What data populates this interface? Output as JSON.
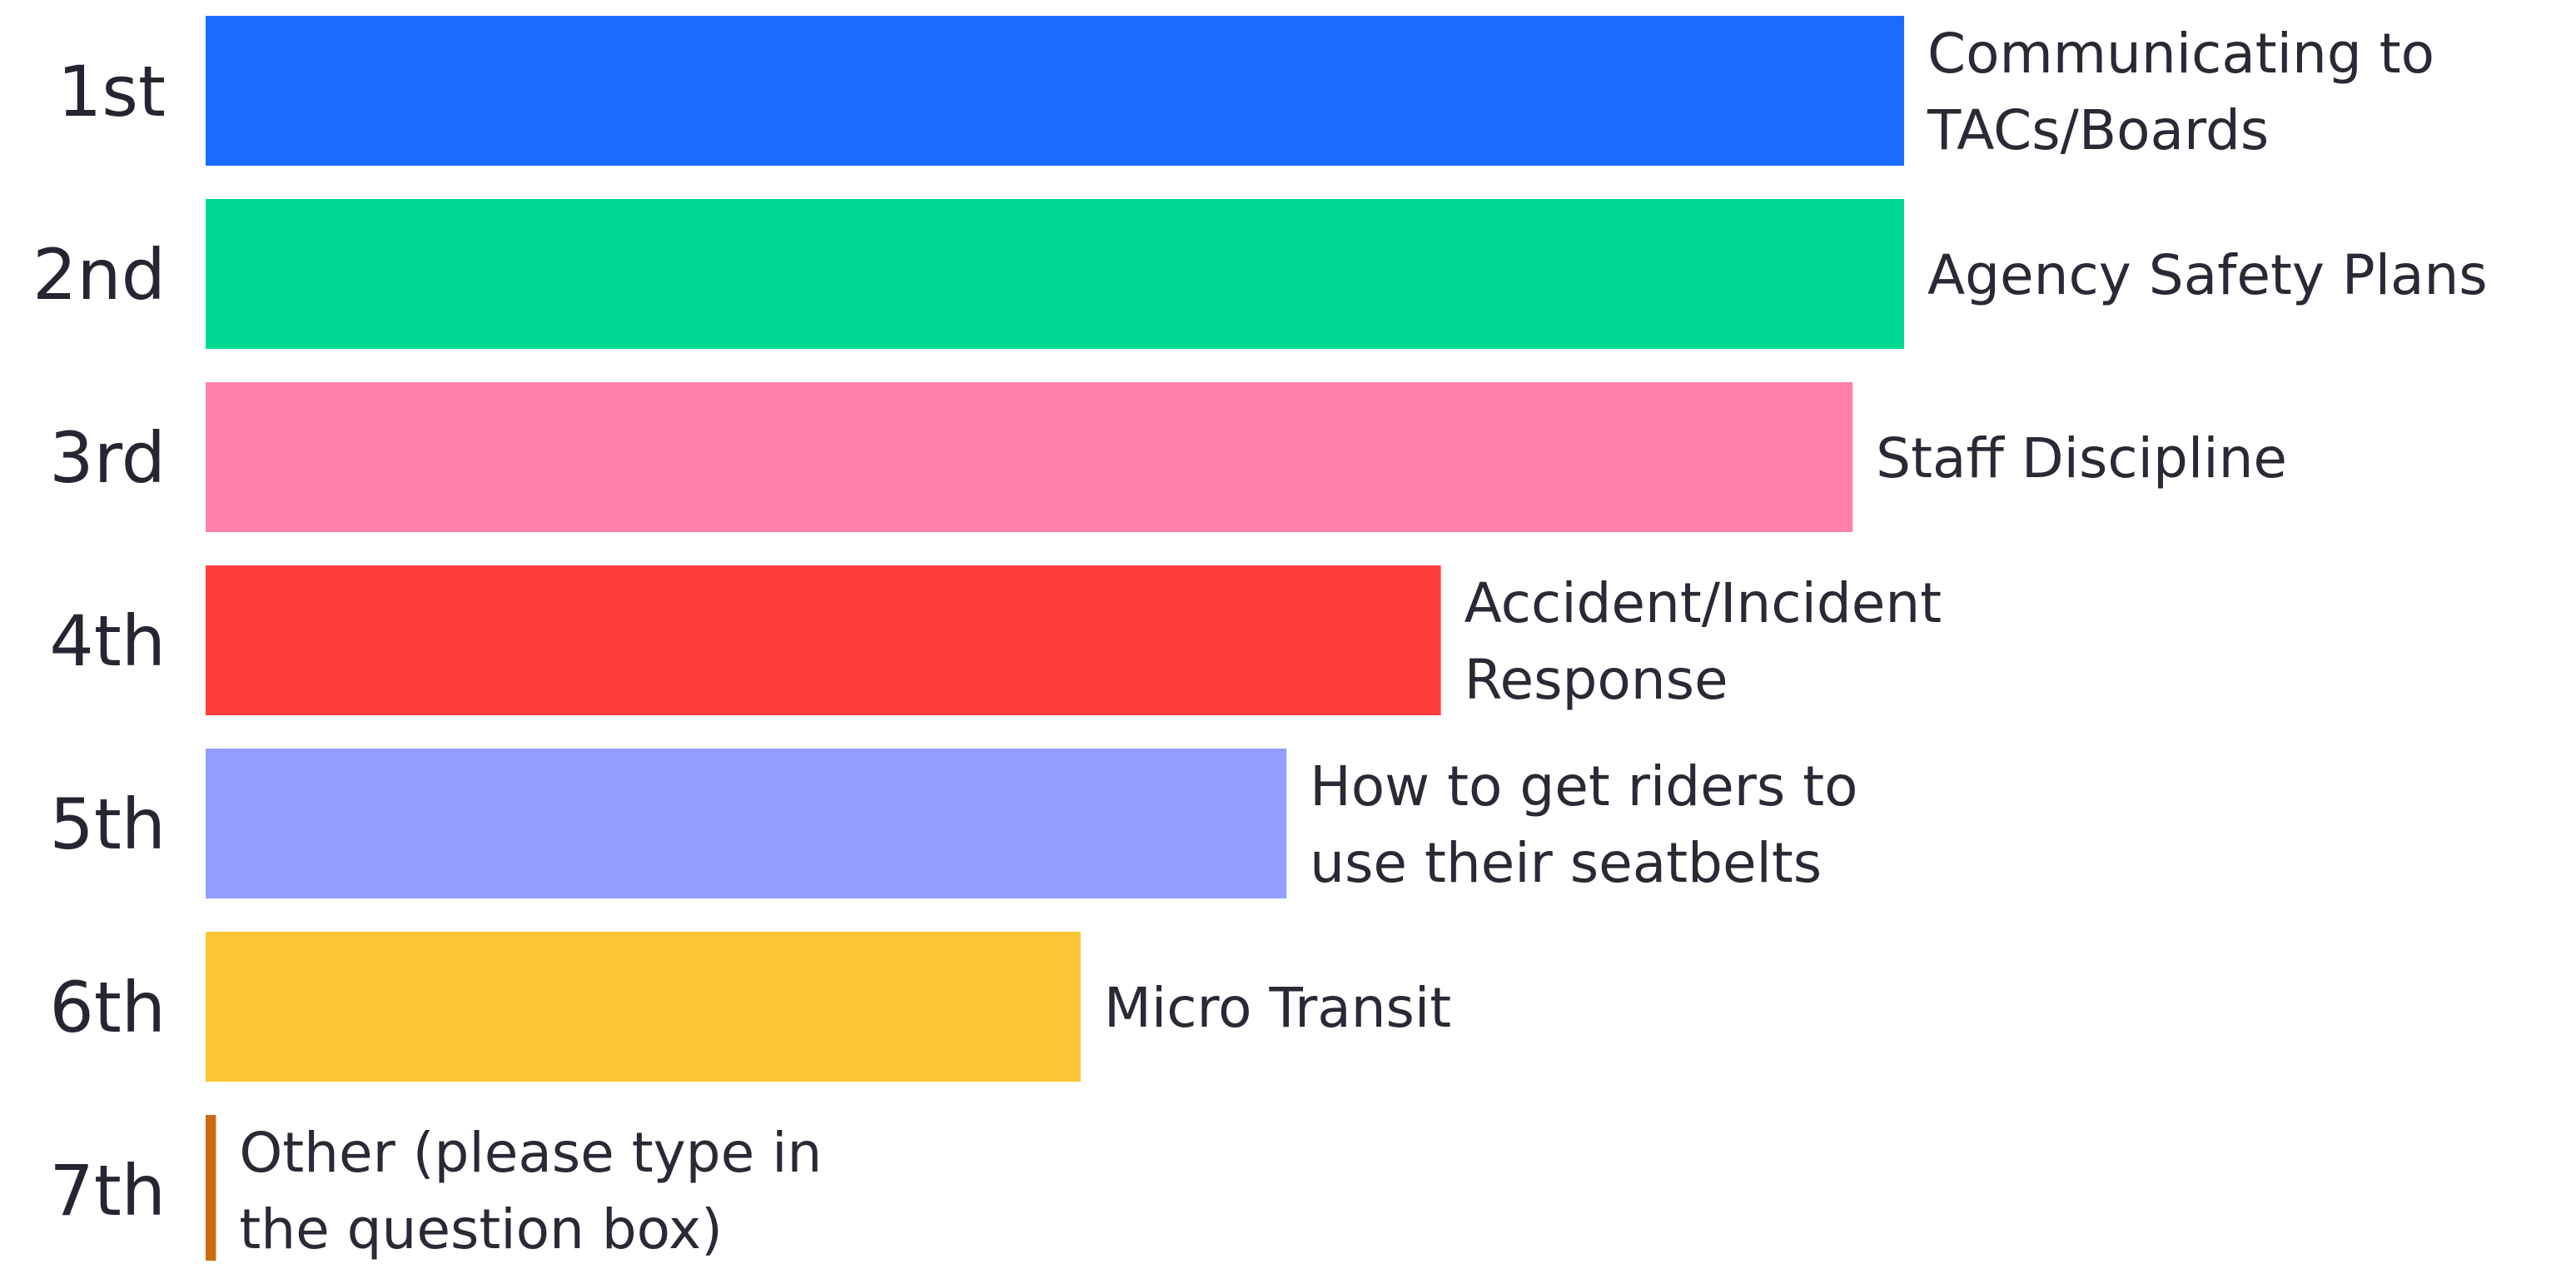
{
  "chart_data": {
    "type": "bar",
    "orientation": "horizontal",
    "categories": [
      "1st",
      "2nd",
      "3rd",
      "4th",
      "5th",
      "6th",
      "7th"
    ],
    "series": [
      {
        "values": [
          33,
          33,
          32,
          24,
          21,
          17,
          0.2
        ],
        "labels": [
          [
            "Communicating to",
            "TACs/Boards"
          ],
          [
            "Agency Safety Plans"
          ],
          [
            "Staff Discipline"
          ],
          [
            "Accident/Incident",
            "Response"
          ],
          [
            "How to get riders to",
            "use their seatbelts"
          ],
          [
            "Micro Transit"
          ],
          [
            "Other (please type in",
            "the question box)"
          ]
        ],
        "colors": [
          "#1a6cff",
          "#00d993",
          "#ff80a8",
          "#ff3d3d",
          "#959dff",
          "#fbc535",
          "#cc6a12"
        ]
      }
    ],
    "xlim": [
      0,
      33
    ],
    "title": "",
    "xlabel": "",
    "ylabel": "",
    "grid": false,
    "legend": "none"
  }
}
